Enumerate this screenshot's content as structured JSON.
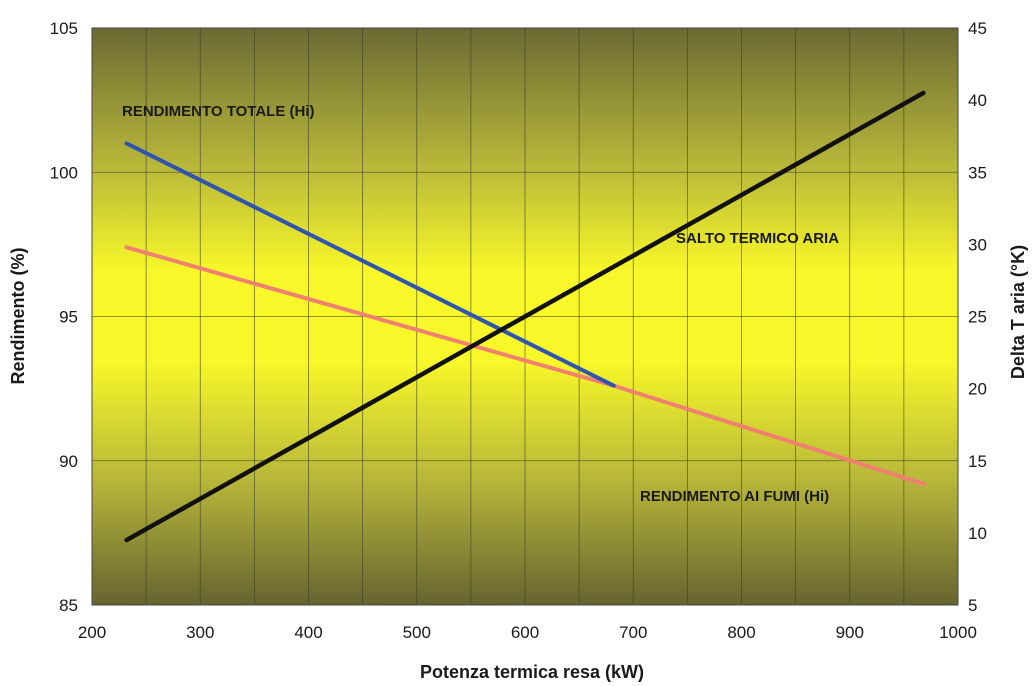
{
  "chart_data": {
    "type": "line",
    "title": "",
    "xlabel": "Potenza termica resa (kW)",
    "ylabel_left": "Rendimento (%)",
    "ylabel_right": "Delta T aria (°K)",
    "xlim": [
      200,
      1000
    ],
    "ylim_left": [
      85,
      105
    ],
    "ylim_right": [
      5,
      45
    ],
    "x_ticks": [
      200,
      300,
      400,
      500,
      600,
      700,
      800,
      900,
      1000
    ],
    "y_ticks_left": [
      85,
      90,
      95,
      100,
      105
    ],
    "y_ticks_right": [
      5,
      10,
      15,
      20,
      25,
      30,
      35,
      40,
      45
    ],
    "grid": true,
    "colors": {
      "rendimento_totale": "#2f55b0",
      "rendimento_ai_fumi": "#f08070",
      "salto_termico_aria": "#111111",
      "plot_center": "#fbfb22",
      "plot_edge": "#6e6c34"
    },
    "series": [
      {
        "name": "RENDIMENTO TOTALE (Hi)",
        "axis": "left",
        "color_key": "rendimento_totale",
        "x": [
          232,
          682
        ],
        "y": [
          101.0,
          92.6
        ]
      },
      {
        "name": "RENDIMENTO AI FUMI (Hi)",
        "axis": "left",
        "color_key": "rendimento_ai_fumi",
        "x": [
          232,
          682,
          968
        ],
        "y": [
          97.4,
          92.6,
          89.2
        ]
      },
      {
        "name": "SALTO TERMICO ARIA",
        "axis": "right",
        "color_key": "salto_termico_aria",
        "x": [
          232,
          968
        ],
        "y": [
          9.5,
          40.5
        ]
      }
    ],
    "annotations": [
      {
        "text": "RENDIMENTO TOTALE (Hi)",
        "series": 0
      },
      {
        "text": "SALTO TERMICO ARIA",
        "series": 2
      },
      {
        "text": "RENDIMENTO AI FUMI (Hi)",
        "series": 1
      }
    ]
  }
}
